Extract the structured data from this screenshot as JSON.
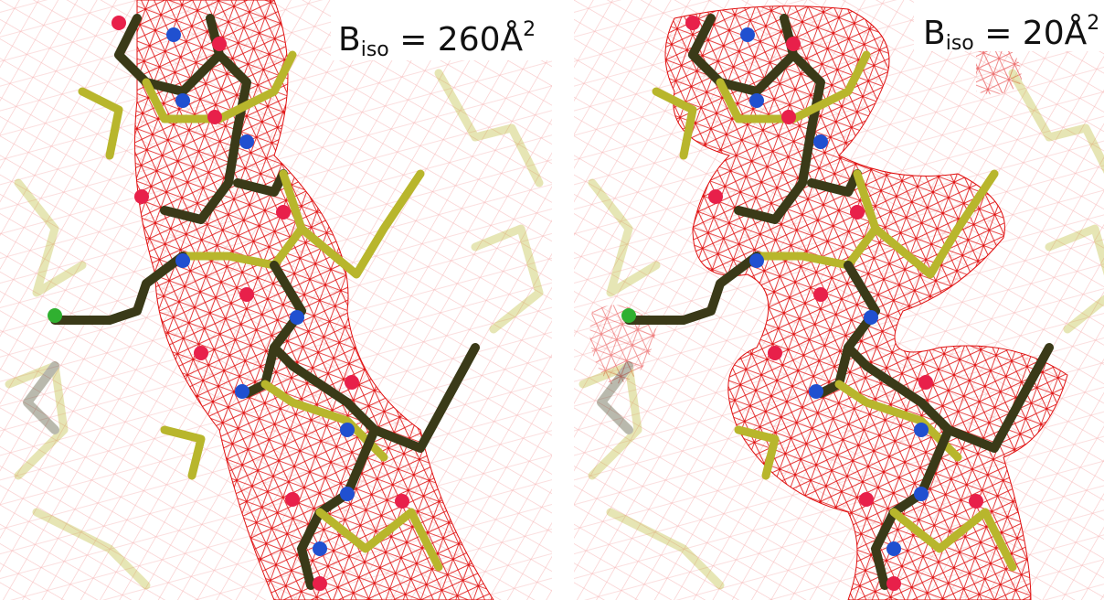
{
  "panels": [
    {
      "label": {
        "symbol": "B",
        "subscript": "iso",
        "rest": " = 260Å",
        "superscript": "2"
      }
    },
    {
      "label": {
        "symbol": "B",
        "subscript": "iso",
        "rest": " = 20Å",
        "superscript": "2"
      }
    }
  ]
}
